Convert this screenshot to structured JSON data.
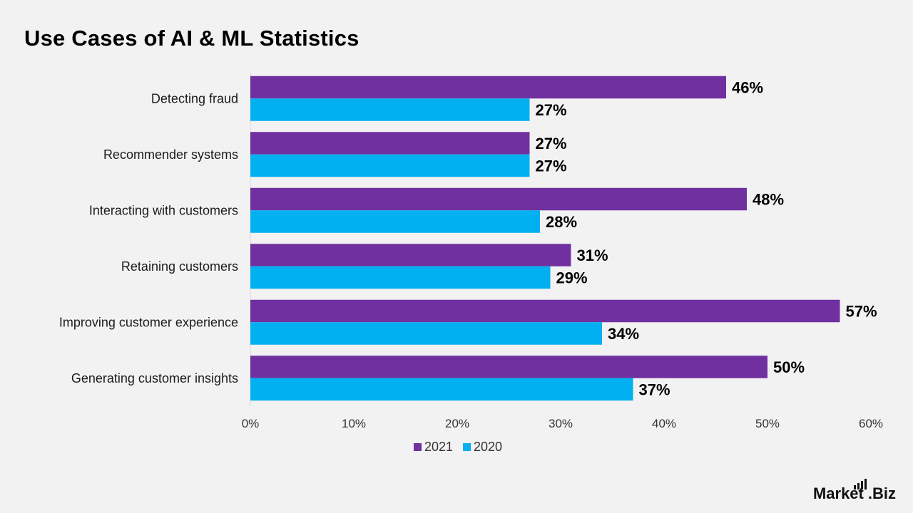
{
  "chart_data": {
    "type": "bar",
    "orientation": "horizontal",
    "title": "Use Cases of AI & ML Statistics",
    "categories": [
      "Detecting fraud",
      "Recommender systems",
      "Interacting with customers",
      "Retaining customers",
      "Improving customer experience",
      "Generating customer insights"
    ],
    "series": [
      {
        "name": "2021",
        "color": "#7030a0",
        "values": [
          46,
          27,
          48,
          31,
          57,
          50
        ],
        "labels": [
          "46%",
          "27%",
          "48%",
          "31%",
          "57%",
          "50%"
        ]
      },
      {
        "name": "2020",
        "color": "#00b0f0",
        "values": [
          27,
          27,
          28,
          29,
          34,
          37
        ],
        "labels": [
          "27%",
          "27%",
          "28%",
          "29%",
          "34%",
          "37%"
        ]
      }
    ],
    "xlim": [
      0,
      60
    ],
    "xticks": [
      0,
      10,
      20,
      30,
      40,
      50,
      60
    ],
    "xtick_labels": [
      "0%",
      "10%",
      "20%",
      "30%",
      "40%",
      "50%",
      "60%"
    ],
    "xlabel": "",
    "ylabel": "",
    "grid": false,
    "legend_position": "bottom"
  },
  "legend": {
    "items": [
      {
        "label": "2021",
        "color": "#7030a0"
      },
      {
        "label": "2020",
        "color": "#00b0f0"
      }
    ]
  },
  "brand": {
    "logo_text_main": "Market",
    "logo_text_suffix": ".Biz"
  }
}
